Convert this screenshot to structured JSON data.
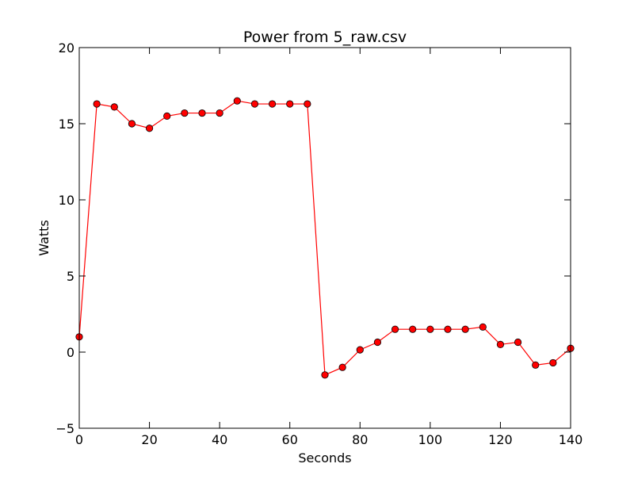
{
  "chart_data": {
    "type": "line",
    "title": "Power from 5_raw.csv",
    "xlabel": "Seconds",
    "ylabel": "Watts",
    "xlim": [
      0,
      140
    ],
    "ylim": [
      -5,
      20
    ],
    "xticks": [
      0,
      20,
      40,
      60,
      80,
      100,
      120,
      140
    ],
    "yticks": [
      -5,
      0,
      5,
      10,
      15,
      20
    ],
    "xtick_labels": [
      "0",
      "20",
      "40",
      "60",
      "80",
      "100",
      "120",
      "140"
    ],
    "ytick_labels": [
      "−5",
      "0",
      "5",
      "10",
      "15",
      "20"
    ],
    "grid": false,
    "line_color": "#ff0000",
    "marker_color": "#ff0000",
    "marker_edge_color": "#000000",
    "series": [
      {
        "x": [
          0,
          5,
          10,
          15,
          20,
          25,
          30,
          35,
          40,
          45,
          50,
          55,
          60,
          65,
          70,
          75,
          80,
          85,
          90,
          95,
          100,
          105,
          110,
          115,
          120,
          125,
          130,
          135,
          140
        ],
        "y": [
          1.0,
          16.3,
          16.1,
          15.0,
          14.7,
          15.5,
          15.7,
          15.7,
          15.7,
          16.5,
          16.3,
          16.3,
          16.3,
          16.3,
          -1.5,
          -1.0,
          0.15,
          0.65,
          1.5,
          1.5,
          1.5,
          1.5,
          1.5,
          1.65,
          0.5,
          0.65,
          -0.85,
          -0.7,
          0.25
        ]
      }
    ]
  }
}
